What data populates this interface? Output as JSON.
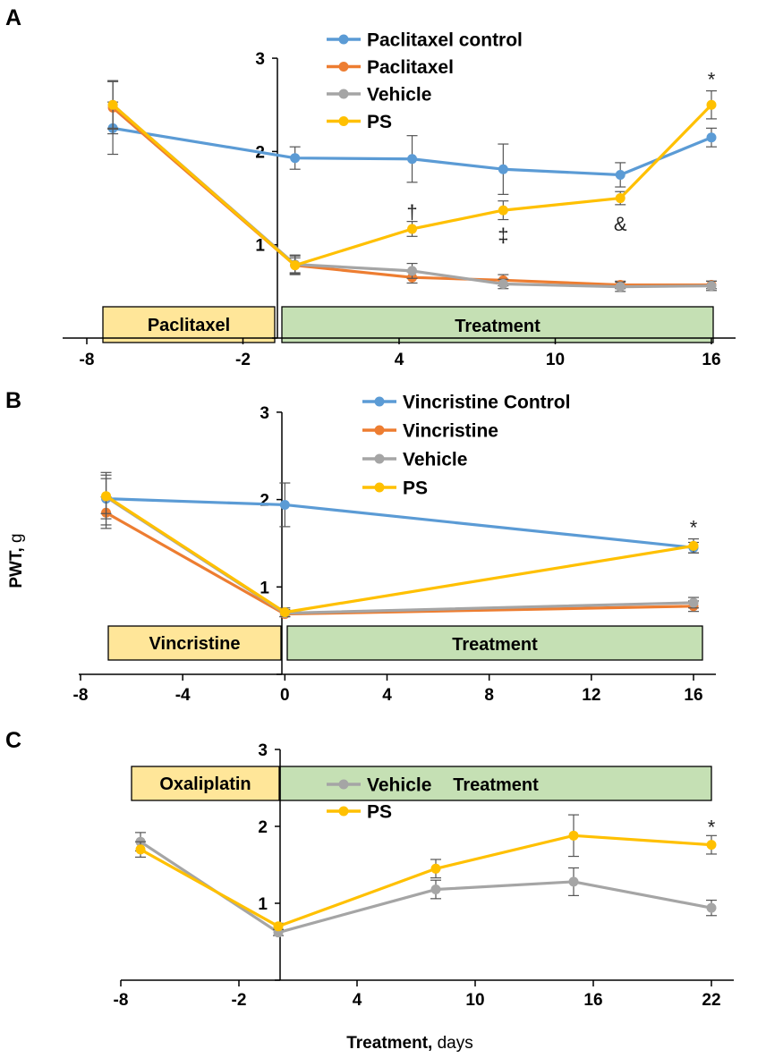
{
  "colors": {
    "blue": "#5b9bd5",
    "orange": "#ed7d31",
    "gray": "#a5a5a5",
    "yellow": "#ffc000",
    "box_yellow": "#ffe699",
    "box_green": "#c5e0b4",
    "errorbar": "#555555"
  },
  "y_axis_title": {
    "bold": "PWT,",
    "normal": " g"
  },
  "x_axis_title": {
    "bold": "Treatment,",
    "normal": " days"
  },
  "chart_data": [
    {
      "type": "line",
      "panel_label": "A",
      "ylim": [
        0,
        3
      ],
      "y_ticks": [
        "1",
        "2",
        "3"
      ],
      "x_ticks": [
        "-8",
        "-2",
        "4",
        "10",
        "16"
      ],
      "phase_boxes": {
        "induction": "Paclitaxel",
        "treatment": "Treatment"
      },
      "series": [
        {
          "name": "Paclitaxel control",
          "color_key": "blue",
          "points": [
            [
              -7,
              2.25,
              0.28
            ],
            [
              0,
              1.93,
              0.12
            ],
            [
              4.5,
              1.92,
              0.25
            ],
            [
              8,
              1.81,
              0.27
            ],
            [
              12.5,
              1.75,
              0.13
            ],
            [
              16,
              2.15,
              0.1
            ]
          ]
        },
        {
          "name": "Paclitaxel",
          "color_key": "orange",
          "points": [
            [
              -7,
              2.47,
              0.28
            ],
            [
              0,
              0.78,
              0.1
            ],
            [
              4.5,
              0.65,
              0.06
            ],
            [
              8,
              0.62,
              0.06
            ],
            [
              12.5,
              0.57,
              0.04
            ],
            [
              16,
              0.57,
              0.04
            ]
          ]
        },
        {
          "name": "Vehicle",
          "color_key": "gray",
          "points": [
            [
              -7,
              2.5,
              0.26
            ],
            [
              0,
              0.79,
              0.1
            ],
            [
              4.5,
              0.72,
              0.08
            ],
            [
              8,
              0.58,
              0.05
            ],
            [
              12.5,
              0.55,
              0.05
            ],
            [
              16,
              0.56,
              0.05
            ]
          ]
        },
        {
          "name": "PS",
          "color_key": "yellow",
          "points": [
            [
              -7,
              2.5,
              0.25
            ],
            [
              0,
              0.78,
              0.08
            ],
            [
              4.5,
              1.17,
              0.08
            ],
            [
              8,
              1.37,
              0.1
            ],
            [
              12.5,
              1.5,
              0.07
            ],
            [
              16,
              2.5,
              0.15
            ]
          ]
        }
      ],
      "annotations": [
        {
          "text": "*",
          "x": 16,
          "y": 2.7
        },
        {
          "text": "†",
          "x": 4.5,
          "y": 1.28
        },
        {
          "text": "‡",
          "x": 8,
          "y": 1.03
        },
        {
          "text": "&",
          "x": 12.5,
          "y": 1.15
        }
      ]
    },
    {
      "type": "line",
      "panel_label": "B",
      "ylim": [
        0,
        3
      ],
      "y_ticks": [
        "1",
        "2",
        "3"
      ],
      "x_ticks": [
        "-8",
        "-4",
        "0",
        "4",
        "8",
        "12",
        "16"
      ],
      "phase_boxes": {
        "induction": "Vincristine",
        "treatment": "Treatment"
      },
      "series": [
        {
          "name": "Vincristine Control",
          "color_key": "blue",
          "points": [
            [
              -7,
              2.01,
              0.3
            ],
            [
              0,
              1.94,
              0.25
            ],
            [
              16,
              1.45,
              0.06
            ]
          ]
        },
        {
          "name": "Vincristine",
          "color_key": "orange",
          "points": [
            [
              -7,
              1.85,
              0.18
            ],
            [
              0,
              0.69,
              0.03
            ],
            [
              16,
              0.78,
              0.06
            ]
          ]
        },
        {
          "name": "Vehicle",
          "color_key": "gray",
          "points": [
            [
              -7,
              2.03,
              0.25
            ],
            [
              0,
              0.7,
              0.04
            ],
            [
              16,
              0.82,
              0.06
            ]
          ]
        },
        {
          "name": "PS",
          "color_key": "yellow",
          "points": [
            [
              -7,
              2.04,
              0.2
            ],
            [
              0,
              0.71,
              0.05
            ],
            [
              16,
              1.47,
              0.08
            ]
          ]
        }
      ],
      "annotations": [
        {
          "text": "*",
          "x": 16,
          "y": 1.6
        }
      ]
    },
    {
      "type": "line",
      "panel_label": "C",
      "ylim": [
        0,
        3
      ],
      "y_ticks": [
        "1",
        "2",
        "3"
      ],
      "x_ticks": [
        "-8",
        "-2",
        "4",
        "10",
        "16",
        "22"
      ],
      "phase_boxes": {
        "induction": "Oxaliplatin",
        "treatment": "Treatment"
      },
      "series": [
        {
          "name": "Vehicle",
          "color_key": "gray",
          "points": [
            [
              -7,
              1.8,
              0.12
            ],
            [
              0,
              0.62,
              0.04
            ],
            [
              8,
              1.18,
              0.12
            ],
            [
              15,
              1.28,
              0.18
            ],
            [
              22,
              0.94,
              0.1
            ]
          ]
        },
        {
          "name": "PS",
          "color_key": "yellow",
          "points": [
            [
              -7,
              1.7,
              0.1
            ],
            [
              0,
              0.7,
              0.04
            ],
            [
              8,
              1.45,
              0.12
            ],
            [
              15,
              1.88,
              0.27
            ],
            [
              22,
              1.76,
              0.12
            ]
          ]
        }
      ],
      "annotations": [
        {
          "text": "*",
          "x": 22,
          "y": 1.9
        }
      ]
    }
  ]
}
